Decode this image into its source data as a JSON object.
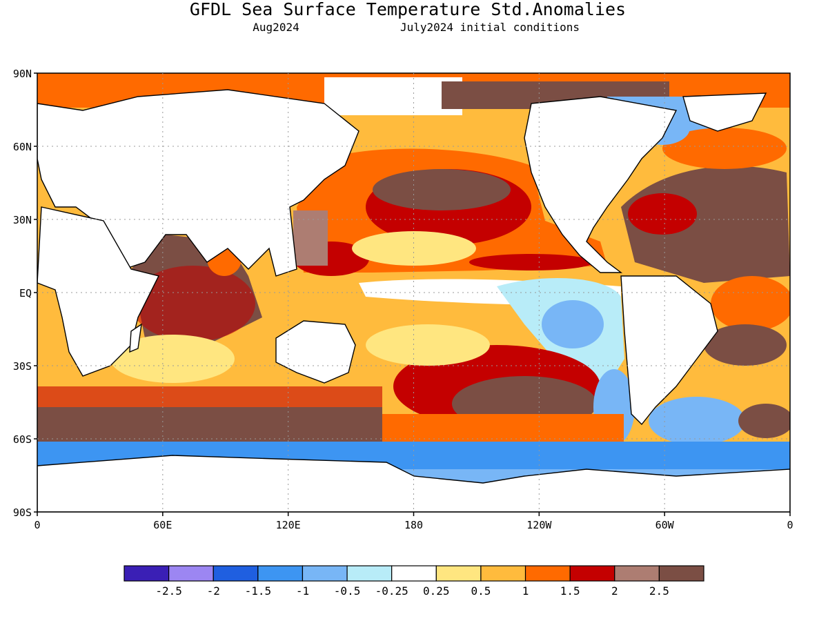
{
  "title": "GFDL Sea Surface Temperature Std.Anomalies",
  "subtitle_left": "Aug2024",
  "subtitle_right": "July2024 initial conditions",
  "lat_labels": [
    "90N",
    "60N",
    "30N",
    "EQ",
    "30S",
    "60S",
    "90S"
  ],
  "lon_labels": [
    "0",
    "60E",
    "120E",
    "180",
    "120W",
    "60W",
    "0"
  ],
  "colorbar": {
    "colors": [
      "#3a1fb5",
      "#9c86f2",
      "#1f5fe0",
      "#3d95f2",
      "#78b6f6",
      "#b8ecf8",
      "#ffffff",
      "#ffe680",
      "#ffbb3d",
      "#ff6a00",
      "#c40000",
      "#ad7d72",
      "#7b4e44"
    ],
    "labels": [
      "-2.5",
      "-2",
      "-1.5",
      "-1",
      "-0.5",
      "-0.25",
      "0.25",
      "0.5",
      "1",
      "1.5",
      "2",
      "2.5"
    ]
  },
  "map": {
    "land_color": "#ffffff",
    "grid": "dotted",
    "regions": [
      {
        "name": "north-pacific-warm-blob",
        "level": 2.5
      },
      {
        "name": "northwest-pacific-warm",
        "level": 1.5
      },
      {
        "name": "equatorial-east-pacific-cool",
        "level": -0.5
      },
      {
        "name": "indian-ocean-warm",
        "level": 2.5
      },
      {
        "name": "north-atlantic-warm",
        "level": 2.5
      },
      {
        "name": "southern-ocean-warm-band",
        "level": 2.5
      },
      {
        "name": "antarctic-cool-band",
        "level": -1.5
      },
      {
        "name": "southeast-pacific-cool",
        "level": -1
      }
    ]
  }
}
